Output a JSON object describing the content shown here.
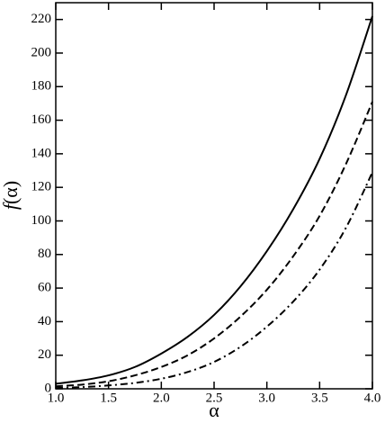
{
  "chart_data": {
    "type": "line",
    "x_label": "α",
    "y_label_func": "f",
    "y_label_arg": "(α)",
    "x": [
      1,
      1.25,
      1.5,
      1.75,
      2,
      2.25,
      2.5,
      2.75,
      3,
      3.25,
      3.5,
      3.75,
      4
    ],
    "series": [
      {
        "color": "#000000",
        "dash": "solid",
        "values": [
          3,
          5,
          8,
          13,
          21,
          31,
          44,
          61,
          82,
          107,
          137,
          175,
          222
        ]
      },
      {
        "color": "#000000",
        "dash": "dashed",
        "values": [
          1.5,
          2.5,
          4.5,
          8,
          13,
          20,
          30,
          43,
          59,
          79,
          103,
          134,
          171
        ]
      },
      {
        "color": "#000000",
        "dash": "dashdot",
        "values": [
          0.5,
          1,
          2,
          3.5,
          6,
          10,
          16,
          25,
          37,
          52,
          71,
          96,
          129
        ]
      }
    ],
    "xlim": [
      1,
      4
    ],
    "xticks": [
      {
        "value": 1,
        "label": "1.0"
      },
      {
        "value": 1.5,
        "label": "1.5"
      },
      {
        "value": 2,
        "label": "2.0"
      },
      {
        "value": 2.5,
        "label": "2.5"
      },
      {
        "value": 3,
        "label": "3.0"
      },
      {
        "value": 3.5,
        "label": "3.5"
      },
      {
        "value": 4,
        "label": "4.0"
      }
    ],
    "ylim": [
      0,
      230
    ],
    "yticks": [
      0,
      20,
      40,
      60,
      80,
      100,
      120,
      140,
      160,
      180,
      200,
      220
    ]
  }
}
